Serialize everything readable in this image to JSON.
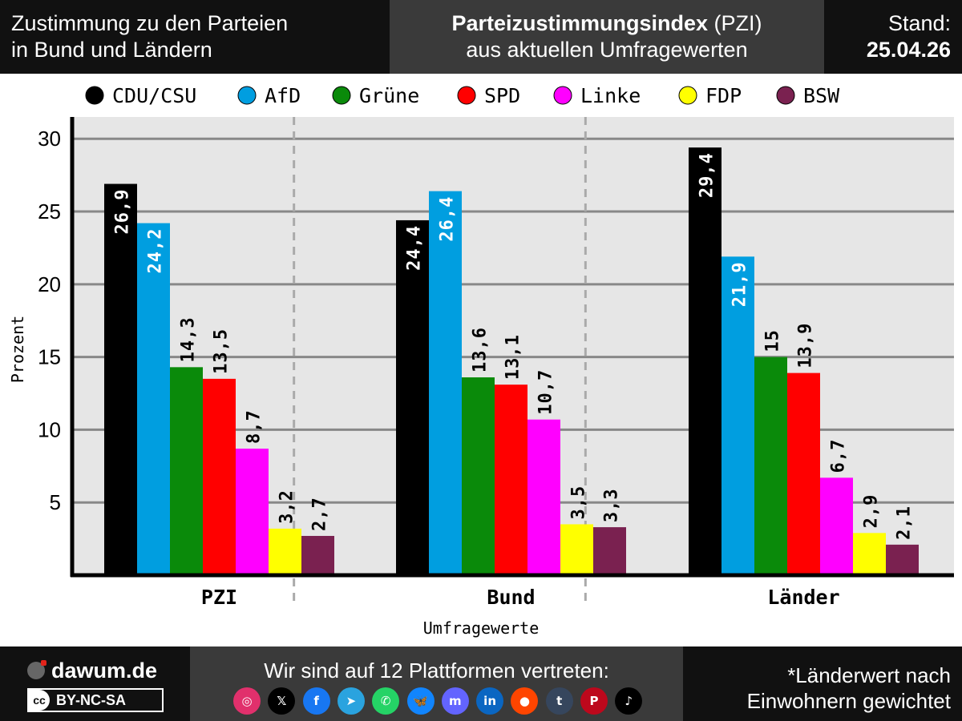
{
  "header": {
    "left_line1": "Zustimmung zu den Parteien",
    "left_line2": "in Bund und Ländern",
    "center_bold": "Parteizustimmungsindex",
    "center_rest": " (PZI)",
    "center_line2": "aus aktuellen Umfragewerten",
    "right_line1": "Stand:",
    "right_line2": "25.04.26"
  },
  "chart_data": {
    "type": "bar",
    "title": "",
    "xlabel": "Umfragewerte",
    "ylabel": "Prozent",
    "ylim": [
      0,
      31.5
    ],
    "yticks": [
      5,
      10,
      15,
      20,
      25,
      30
    ],
    "grid": true,
    "legend_position": "top",
    "categories": [
      "PZI",
      "Bund",
      "Länder"
    ],
    "series": [
      {
        "name": "CDU/CSU",
        "color": "#000000",
        "values": [
          26.9,
          24.4,
          29.4
        ],
        "labels": [
          "26,9",
          "24,4",
          "29,4"
        ]
      },
      {
        "name": "AfD",
        "color": "#009ee0",
        "values": [
          24.2,
          26.4,
          21.9
        ],
        "labels": [
          "24,2",
          "26,4",
          "21,9"
        ]
      },
      {
        "name": "Grüne",
        "color": "#0a8a0a",
        "values": [
          14.3,
          13.6,
          15.0
        ],
        "labels": [
          "14,3",
          "13,6",
          "15"
        ]
      },
      {
        "name": "SPD",
        "color": "#ff0000",
        "values": [
          13.5,
          13.1,
          13.9
        ],
        "labels": [
          "13,5",
          "13,1",
          "13,9"
        ]
      },
      {
        "name": "Linke",
        "color": "#ff00ff",
        "values": [
          8.7,
          10.7,
          6.7
        ],
        "labels": [
          "8,7",
          "10,7",
          "6,7"
        ]
      },
      {
        "name": "FDP",
        "color": "#ffff00",
        "values": [
          3.2,
          3.5,
          2.9
        ],
        "labels": [
          "3,2",
          "3,5",
          "2,9"
        ]
      },
      {
        "name": "BSW",
        "color": "#7a2150",
        "values": [
          2.7,
          3.3,
          2.1
        ],
        "labels": [
          "2,7",
          "3,3",
          "2,1"
        ]
      }
    ]
  },
  "footer": {
    "brand": "dawum.de",
    "license": "BY-NC-SA",
    "license_cc": "cc",
    "platforms_text": "Wir sind auf 12 Plattformen vertreten:",
    "platforms": [
      {
        "icon": "instagram-icon",
        "glyph": "◎",
        "color": "#e1306c"
      },
      {
        "icon": "x-icon",
        "glyph": "𝕏",
        "color": "#000000"
      },
      {
        "icon": "facebook-icon",
        "glyph": "f",
        "color": "#1877f2"
      },
      {
        "icon": "telegram-icon",
        "glyph": "➤",
        "color": "#2aa3df"
      },
      {
        "icon": "whatsapp-icon",
        "glyph": "✆",
        "color": "#25d366"
      },
      {
        "icon": "bluesky-icon",
        "glyph": "🦋",
        "color": "#1185fe"
      },
      {
        "icon": "mastodon-icon",
        "glyph": "m",
        "color": "#6364ff"
      },
      {
        "icon": "linkedin-icon",
        "glyph": "in",
        "color": "#0a66c2"
      },
      {
        "icon": "reddit-icon",
        "glyph": "●",
        "color": "#ff4500"
      },
      {
        "icon": "tumblr-icon",
        "glyph": "t",
        "color": "#36465d"
      },
      {
        "icon": "pinterest-icon",
        "glyph": "P",
        "color": "#bd081c"
      },
      {
        "icon": "tiktok-icon",
        "glyph": "♪",
        "color": "#000000"
      }
    ],
    "note_line1": "*Länderwert nach",
    "note_line2": "Einwohnern gewichtet"
  }
}
